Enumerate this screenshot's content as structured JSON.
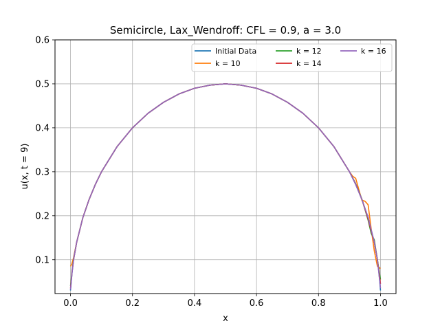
{
  "chart_data": {
    "type": "line",
    "title": "Semicircle, Lax_Wendroff: CFL = 0.9, a = 3.0",
    "xlabel": "x",
    "ylabel": "u(x, t = 9)",
    "xlim": [
      -0.05,
      1.05
    ],
    "ylim": [
      0.023,
      0.6
    ],
    "xticks": [
      "0.0",
      "0.2",
      "0.4",
      "0.6",
      "0.8",
      "1.0"
    ],
    "xtick_values": [
      0.0,
      0.2,
      0.4,
      0.6,
      0.8,
      1.0
    ],
    "yticks": [
      "0.1",
      "0.2",
      "0.3",
      "0.4",
      "0.5",
      "0.6"
    ],
    "ytick_values": [
      0.1,
      0.2,
      0.3,
      0.4,
      0.5,
      0.6
    ],
    "grid": true,
    "legend_position": "top-right",
    "legend_columns": 3,
    "series": [
      {
        "name": "Initial Data",
        "color": "#1f77b4",
        "points": [
          [
            0.0,
            0.03
          ],
          [
            0.005,
            0.07
          ],
          [
            0.01,
            0.1
          ],
          [
            0.02,
            0.14
          ],
          [
            0.04,
            0.196
          ],
          [
            0.06,
            0.237
          ],
          [
            0.08,
            0.271
          ],
          [
            0.1,
            0.3
          ],
          [
            0.15,
            0.357
          ],
          [
            0.2,
            0.4
          ],
          [
            0.25,
            0.433
          ],
          [
            0.3,
            0.458
          ],
          [
            0.35,
            0.477
          ],
          [
            0.4,
            0.49
          ],
          [
            0.45,
            0.497
          ],
          [
            0.5,
            0.5
          ],
          [
            0.55,
            0.497
          ],
          [
            0.6,
            0.49
          ],
          [
            0.65,
            0.477
          ],
          [
            0.7,
            0.458
          ],
          [
            0.75,
            0.433
          ],
          [
            0.8,
            0.4
          ],
          [
            0.85,
            0.357
          ],
          [
            0.9,
            0.3
          ],
          [
            0.92,
            0.271
          ],
          [
            0.94,
            0.237
          ],
          [
            0.96,
            0.196
          ],
          [
            0.98,
            0.14
          ],
          [
            0.99,
            0.1
          ],
          [
            0.995,
            0.07
          ],
          [
            1.0,
            0.03
          ]
        ]
      },
      {
        "name": "k = 10",
        "color": "#ff7f0e",
        "points": [
          [
            0.0,
            0.085
          ],
          [
            0.004,
            0.09
          ],
          [
            0.01,
            0.105
          ],
          [
            0.02,
            0.14
          ],
          [
            0.04,
            0.196
          ],
          [
            0.06,
            0.237
          ],
          [
            0.08,
            0.271
          ],
          [
            0.1,
            0.3
          ],
          [
            0.15,
            0.357
          ],
          [
            0.2,
            0.4
          ],
          [
            0.25,
            0.433
          ],
          [
            0.3,
            0.458
          ],
          [
            0.35,
            0.477
          ],
          [
            0.4,
            0.49
          ],
          [
            0.45,
            0.497
          ],
          [
            0.5,
            0.5
          ],
          [
            0.55,
            0.497
          ],
          [
            0.6,
            0.49
          ],
          [
            0.65,
            0.477
          ],
          [
            0.7,
            0.458
          ],
          [
            0.75,
            0.433
          ],
          [
            0.8,
            0.4
          ],
          [
            0.85,
            0.357
          ],
          [
            0.9,
            0.3
          ],
          [
            0.91,
            0.29
          ],
          [
            0.92,
            0.285
          ],
          [
            0.93,
            0.26
          ],
          [
            0.94,
            0.235
          ],
          [
            0.95,
            0.233
          ],
          [
            0.96,
            0.225
          ],
          [
            0.97,
            0.17
          ],
          [
            0.98,
            0.12
          ],
          [
            0.99,
            0.085
          ],
          [
            1.0,
            0.08
          ]
        ]
      },
      {
        "name": "k = 12",
        "color": "#2ca02c",
        "points": [
          [
            0.0,
            0.04
          ],
          [
            0.005,
            0.075
          ],
          [
            0.01,
            0.102
          ],
          [
            0.02,
            0.14
          ],
          [
            0.04,
            0.196
          ],
          [
            0.06,
            0.237
          ],
          [
            0.08,
            0.271
          ],
          [
            0.1,
            0.3
          ],
          [
            0.15,
            0.357
          ],
          [
            0.2,
            0.4
          ],
          [
            0.25,
            0.433
          ],
          [
            0.3,
            0.458
          ],
          [
            0.35,
            0.477
          ],
          [
            0.4,
            0.49
          ],
          [
            0.45,
            0.497
          ],
          [
            0.5,
            0.5
          ],
          [
            0.55,
            0.497
          ],
          [
            0.6,
            0.49
          ],
          [
            0.65,
            0.477
          ],
          [
            0.7,
            0.458
          ],
          [
            0.75,
            0.433
          ],
          [
            0.8,
            0.4
          ],
          [
            0.85,
            0.357
          ],
          [
            0.9,
            0.3
          ],
          [
            0.92,
            0.273
          ],
          [
            0.94,
            0.238
          ],
          [
            0.96,
            0.19
          ],
          [
            0.97,
            0.16
          ],
          [
            0.98,
            0.145
          ],
          [
            0.99,
            0.1
          ],
          [
            1.0,
            0.055
          ]
        ]
      },
      {
        "name": "k = 14",
        "color": "#d62728",
        "points": [
          [
            0.0,
            0.035
          ],
          [
            0.005,
            0.072
          ],
          [
            0.01,
            0.1
          ],
          [
            0.02,
            0.14
          ],
          [
            0.04,
            0.196
          ],
          [
            0.06,
            0.237
          ],
          [
            0.08,
            0.271
          ],
          [
            0.1,
            0.3
          ],
          [
            0.15,
            0.357
          ],
          [
            0.2,
            0.4
          ],
          [
            0.25,
            0.433
          ],
          [
            0.3,
            0.458
          ],
          [
            0.35,
            0.477
          ],
          [
            0.4,
            0.49
          ],
          [
            0.45,
            0.497
          ],
          [
            0.5,
            0.5
          ],
          [
            0.55,
            0.497
          ],
          [
            0.6,
            0.49
          ],
          [
            0.65,
            0.477
          ],
          [
            0.7,
            0.458
          ],
          [
            0.75,
            0.433
          ],
          [
            0.8,
            0.4
          ],
          [
            0.85,
            0.357
          ],
          [
            0.9,
            0.3
          ],
          [
            0.92,
            0.272
          ],
          [
            0.94,
            0.237
          ],
          [
            0.96,
            0.193
          ],
          [
            0.97,
            0.165
          ],
          [
            0.98,
            0.14
          ],
          [
            0.99,
            0.1
          ],
          [
            1.0,
            0.045
          ]
        ]
      },
      {
        "name": "k = 16",
        "color": "#9467bd",
        "points": [
          [
            0.0,
            0.032
          ],
          [
            0.005,
            0.07
          ],
          [
            0.01,
            0.1
          ],
          [
            0.02,
            0.14
          ],
          [
            0.04,
            0.196
          ],
          [
            0.06,
            0.237
          ],
          [
            0.08,
            0.271
          ],
          [
            0.1,
            0.3
          ],
          [
            0.15,
            0.357
          ],
          [
            0.2,
            0.4
          ],
          [
            0.25,
            0.433
          ],
          [
            0.3,
            0.458
          ],
          [
            0.35,
            0.477
          ],
          [
            0.4,
            0.49
          ],
          [
            0.45,
            0.497
          ],
          [
            0.5,
            0.5
          ],
          [
            0.55,
            0.497
          ],
          [
            0.6,
            0.49
          ],
          [
            0.65,
            0.477
          ],
          [
            0.7,
            0.458
          ],
          [
            0.75,
            0.433
          ],
          [
            0.8,
            0.4
          ],
          [
            0.85,
            0.357
          ],
          [
            0.9,
            0.3
          ],
          [
            0.92,
            0.271
          ],
          [
            0.94,
            0.237
          ],
          [
            0.96,
            0.196
          ],
          [
            0.97,
            0.168
          ],
          [
            0.98,
            0.14
          ],
          [
            0.99,
            0.1
          ],
          [
            1.0,
            0.035
          ]
        ]
      }
    ]
  }
}
